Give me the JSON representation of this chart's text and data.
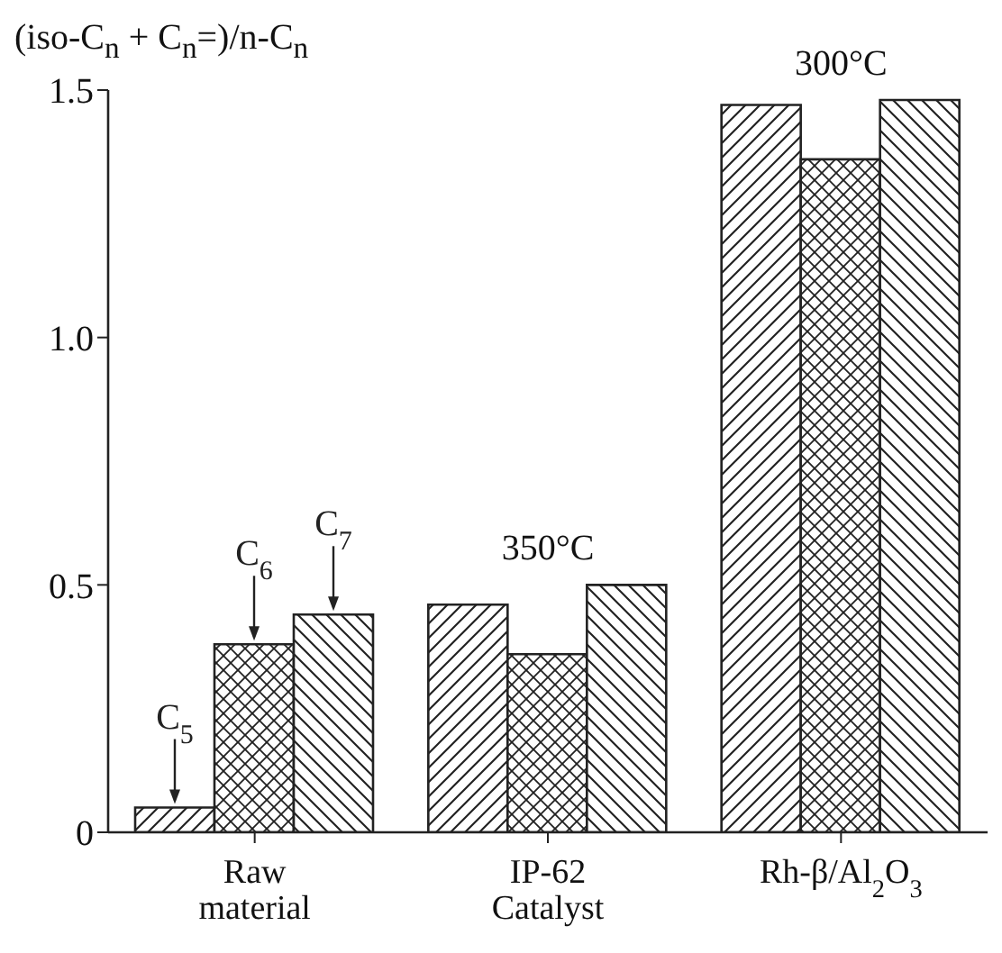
{
  "chart_data": {
    "type": "bar",
    "ylabel": "(iso-C$_{n}$ + C$_{n}$=)/n-C$_{n}$",
    "categories": [
      "Raw material",
      "IP-62 Catalyst",
      "Rh-β/Al$_{2}$O$_{3}$"
    ],
    "series": [
      {
        "name": "C$_{5}$",
        "color": "#222222",
        "values": [
          0.05,
          0.46,
          1.47
        ]
      },
      {
        "name": "C$_{6}$",
        "color": "#222222",
        "values": [
          0.38,
          0.36,
          1.36
        ]
      },
      {
        "name": "C$_{7}$",
        "color": "#222222",
        "values": [
          0.44,
          0.5,
          1.48
        ]
      }
    ],
    "ylim": [
      0,
      1.5
    ],
    "yticks": [
      0,
      {
        "value": 0.5,
        "label": "0.5"
      },
      {
        "value": 1,
        "label": "1.0"
      },
      1.5
    ],
    "annotations": [
      "350°C",
      "300°C"
    ],
    "grid": false,
    "legend": false
  }
}
